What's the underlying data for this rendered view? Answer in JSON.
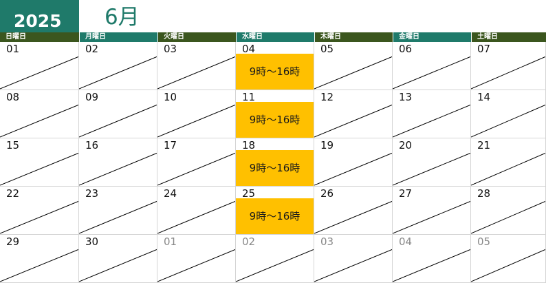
{
  "header": {
    "year": "2025",
    "month": "6月"
  },
  "weekdays": [
    {
      "label": "日曜日",
      "style": "green"
    },
    {
      "label": "月曜日",
      "style": "teal"
    },
    {
      "label": "火曜日",
      "style": "green"
    },
    {
      "label": "水曜日",
      "style": "teal"
    },
    {
      "label": "木曜日",
      "style": "green"
    },
    {
      "label": "金曜日",
      "style": "teal"
    },
    {
      "label": "土曜日",
      "style": "green"
    }
  ],
  "weeks": [
    [
      {
        "day": "01"
      },
      {
        "day": "02"
      },
      {
        "day": "03"
      },
      {
        "day": "04",
        "event": "9時～16時"
      },
      {
        "day": "05"
      },
      {
        "day": "06"
      },
      {
        "day": "07"
      }
    ],
    [
      {
        "day": "08"
      },
      {
        "day": "09"
      },
      {
        "day": "10"
      },
      {
        "day": "11",
        "event": "9時～16時"
      },
      {
        "day": "12"
      },
      {
        "day": "13"
      },
      {
        "day": "14"
      }
    ],
    [
      {
        "day": "15"
      },
      {
        "day": "16"
      },
      {
        "day": "17"
      },
      {
        "day": "18",
        "event": "9時～16時"
      },
      {
        "day": "19"
      },
      {
        "day": "20"
      },
      {
        "day": "21"
      }
    ],
    [
      {
        "day": "22"
      },
      {
        "day": "23"
      },
      {
        "day": "24"
      },
      {
        "day": "25",
        "event": "9時～16時"
      },
      {
        "day": "26"
      },
      {
        "day": "27"
      },
      {
        "day": "28"
      }
    ],
    [
      {
        "day": "29"
      },
      {
        "day": "30"
      },
      {
        "day": "01",
        "other": true
      },
      {
        "day": "02",
        "other": true
      },
      {
        "day": "03",
        "other": true
      },
      {
        "day": "04",
        "other": true
      },
      {
        "day": "05",
        "other": true
      }
    ]
  ],
  "colors": {
    "year_bg": "#1f7a6a",
    "header_green": "#3b561e",
    "header_teal": "#1f7a6a",
    "event_bg": "#ffc000"
  }
}
